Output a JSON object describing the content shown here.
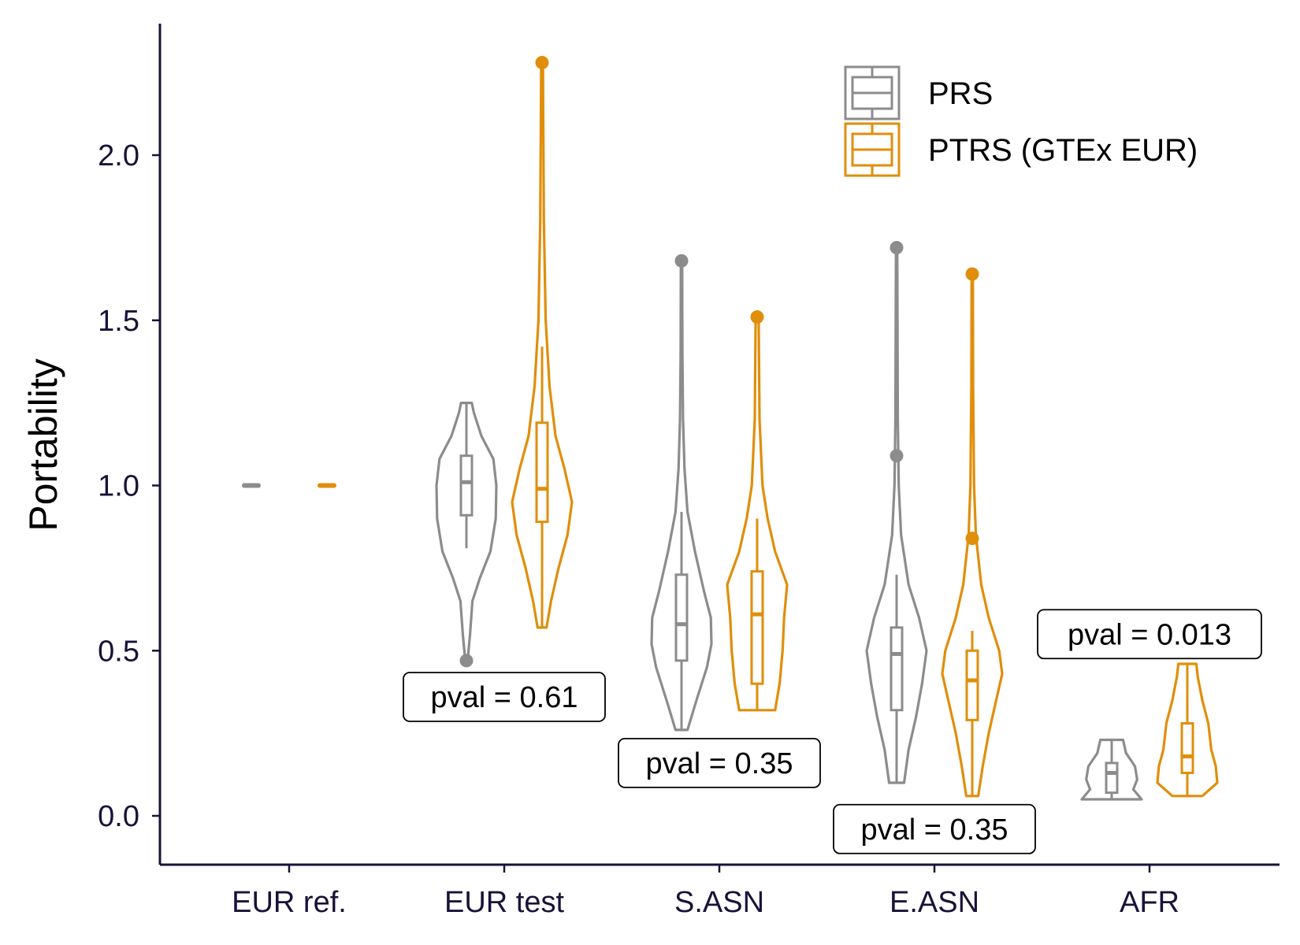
{
  "chart_data": {
    "type": "violin",
    "ylabel": "Portability",
    "xlabel": "",
    "ylim": [
      -0.15,
      2.38
    ],
    "yticks": [
      0.0,
      0.5,
      1.0,
      1.5,
      2.0
    ],
    "ytick_labels": [
      "0.0",
      "0.5",
      "1.0",
      "1.5",
      "2.0"
    ],
    "categories": [
      "EUR ref.",
      "EUR test",
      "S.ASN",
      "E.ASN",
      "AFR"
    ],
    "legend": {
      "placement": "top-right",
      "entries": [
        "PRS",
        "PTRS (GTEx EUR)"
      ]
    },
    "colors": {
      "PRS": "#8c8c8c",
      "PTRS": "#e08e0b",
      "axis": "#1a1238"
    },
    "series": [
      {
        "name": "PRS",
        "groups": [
          {
            "category": "EUR ref.",
            "min": 1.0,
            "max": 1.0,
            "q1": 1.0,
            "median": 1.0,
            "q3": 1.0,
            "whisker_low": 1.0,
            "whisker_high": 1.0,
            "outliers": [],
            "density": [
              [
                1.0,
                1
              ]
            ]
          },
          {
            "category": "EUR test",
            "min": 0.47,
            "max": 1.25,
            "q1": 0.91,
            "median": 1.01,
            "q3": 1.09,
            "whisker_low": 0.81,
            "whisker_high": 1.25,
            "outliers": [
              0.47
            ],
            "density": [
              [
                0.47,
                0.04
              ],
              [
                0.55,
                0.12
              ],
              [
                0.65,
                0.2
              ],
              [
                0.72,
                0.45
              ],
              [
                0.8,
                0.8
              ],
              [
                0.9,
                0.98
              ],
              [
                1.0,
                1.0
              ],
              [
                1.08,
                0.9
              ],
              [
                1.15,
                0.5
              ],
              [
                1.22,
                0.25
              ],
              [
                1.25,
                0.18
              ]
            ]
          },
          {
            "category": "S.ASN",
            "min": 0.26,
            "max": 1.68,
            "q1": 0.47,
            "median": 0.58,
            "q3": 0.73,
            "whisker_low": 0.26,
            "whisker_high": 0.92,
            "outliers": [
              1.68
            ],
            "density": [
              [
                0.26,
                0.2
              ],
              [
                0.35,
                0.5
              ],
              [
                0.45,
                0.85
              ],
              [
                0.52,
                1.0
              ],
              [
                0.6,
                0.98
              ],
              [
                0.68,
                0.75
              ],
              [
                0.8,
                0.45
              ],
              [
                0.92,
                0.2
              ],
              [
                1.05,
                0.1
              ],
              [
                1.2,
                0.05
              ],
              [
                1.4,
                0.03
              ],
              [
                1.68,
                0.02
              ]
            ]
          },
          {
            "category": "E.ASN",
            "min": 0.1,
            "max": 1.72,
            "q1": 0.32,
            "median": 0.49,
            "q3": 0.57,
            "whisker_low": 0.1,
            "whisker_high": 0.73,
            "outliers": [
              1.09,
              1.72
            ],
            "density": [
              [
                0.1,
                0.25
              ],
              [
                0.2,
                0.4
              ],
              [
                0.3,
                0.65
              ],
              [
                0.4,
                0.85
              ],
              [
                0.5,
                1.0
              ],
              [
                0.6,
                0.75
              ],
              [
                0.7,
                0.4
              ],
              [
                0.85,
                0.15
              ],
              [
                1.0,
                0.07
              ],
              [
                1.2,
                0.04
              ],
              [
                1.5,
                0.03
              ],
              [
                1.72,
                0.02
              ]
            ]
          },
          {
            "category": "AFR",
            "min": 0.05,
            "max": 0.23,
            "q1": 0.07,
            "median": 0.13,
            "q3": 0.16,
            "whisker_low": 0.05,
            "whisker_high": 0.23,
            "outliers": [],
            "density": [
              [
                0.05,
                1.0
              ],
              [
                0.08,
                0.72
              ],
              [
                0.11,
                0.85
              ],
              [
                0.15,
                0.78
              ],
              [
                0.19,
                0.48
              ],
              [
                0.23,
                0.38
              ]
            ]
          }
        ]
      },
      {
        "name": "PTRS (GTEx EUR)",
        "groups": [
          {
            "category": "EUR ref.",
            "min": 1.0,
            "max": 1.0,
            "q1": 1.0,
            "median": 1.0,
            "q3": 1.0,
            "whisker_low": 1.0,
            "whisker_high": 1.0,
            "outliers": [],
            "density": [
              [
                1.0,
                1
              ]
            ]
          },
          {
            "category": "EUR test",
            "min": 0.57,
            "max": 2.28,
            "q1": 0.89,
            "median": 0.99,
            "q3": 1.19,
            "whisker_low": 0.57,
            "whisker_high": 1.42,
            "outliers": [
              2.28
            ],
            "density": [
              [
                0.57,
                0.15
              ],
              [
                0.65,
                0.3
              ],
              [
                0.75,
                0.55
              ],
              [
                0.85,
                0.85
              ],
              [
                0.95,
                1.0
              ],
              [
                1.05,
                0.75
              ],
              [
                1.15,
                0.45
              ],
              [
                1.3,
                0.25
              ],
              [
                1.5,
                0.12
              ],
              [
                1.8,
                0.06
              ],
              [
                2.1,
                0.04
              ],
              [
                2.28,
                0.03
              ]
            ]
          },
          {
            "category": "S.ASN",
            "min": 0.32,
            "max": 1.51,
            "q1": 0.4,
            "median": 0.61,
            "q3": 0.74,
            "whisker_low": 0.32,
            "whisker_high": 0.9,
            "outliers": [
              1.51
            ],
            "density": [
              [
                0.32,
                0.6
              ],
              [
                0.4,
                0.75
              ],
              [
                0.5,
                0.85
              ],
              [
                0.6,
                0.9
              ],
              [
                0.7,
                1.0
              ],
              [
                0.8,
                0.6
              ],
              [
                0.9,
                0.35
              ],
              [
                1.0,
                0.18
              ],
              [
                1.2,
                0.08
              ],
              [
                1.51,
                0.05
              ]
            ]
          },
          {
            "category": "E.ASN",
            "min": 0.06,
            "max": 1.64,
            "q1": 0.29,
            "median": 0.41,
            "q3": 0.5,
            "whisker_low": 0.06,
            "whisker_high": 0.56,
            "outliers": [
              0.84,
              1.64
            ],
            "density": [
              [
                0.06,
                0.2
              ],
              [
                0.15,
                0.35
              ],
              [
                0.25,
                0.55
              ],
              [
                0.35,
                0.8
              ],
              [
                0.43,
                1.0
              ],
              [
                0.5,
                0.9
              ],
              [
                0.6,
                0.55
              ],
              [
                0.7,
                0.3
              ],
              [
                0.85,
                0.12
              ],
              [
                1.0,
                0.06
              ],
              [
                1.3,
                0.03
              ],
              [
                1.64,
                0.02
              ]
            ]
          },
          {
            "category": "AFR",
            "min": 0.06,
            "max": 0.46,
            "q1": 0.13,
            "median": 0.18,
            "q3": 0.28,
            "whisker_low": 0.06,
            "whisker_high": 0.46,
            "outliers": [],
            "density": [
              [
                0.06,
                0.5
              ],
              [
                0.1,
                1.0
              ],
              [
                0.15,
                0.95
              ],
              [
                0.2,
                0.8
              ],
              [
                0.28,
                0.7
              ],
              [
                0.35,
                0.5
              ],
              [
                0.42,
                0.35
              ],
              [
                0.46,
                0.3
              ]
            ]
          }
        ]
      }
    ],
    "annotations": [
      {
        "category": "EUR test",
        "text": "pval = 0.61",
        "y": 0.36
      },
      {
        "category": "S.ASN",
        "text": "pval = 0.35",
        "y": 0.16
      },
      {
        "category": "E.ASN",
        "text": "pval = 0.35",
        "y": -0.04
      },
      {
        "category": "AFR",
        "text": "pval = 0.013",
        "y": 0.55
      }
    ]
  }
}
